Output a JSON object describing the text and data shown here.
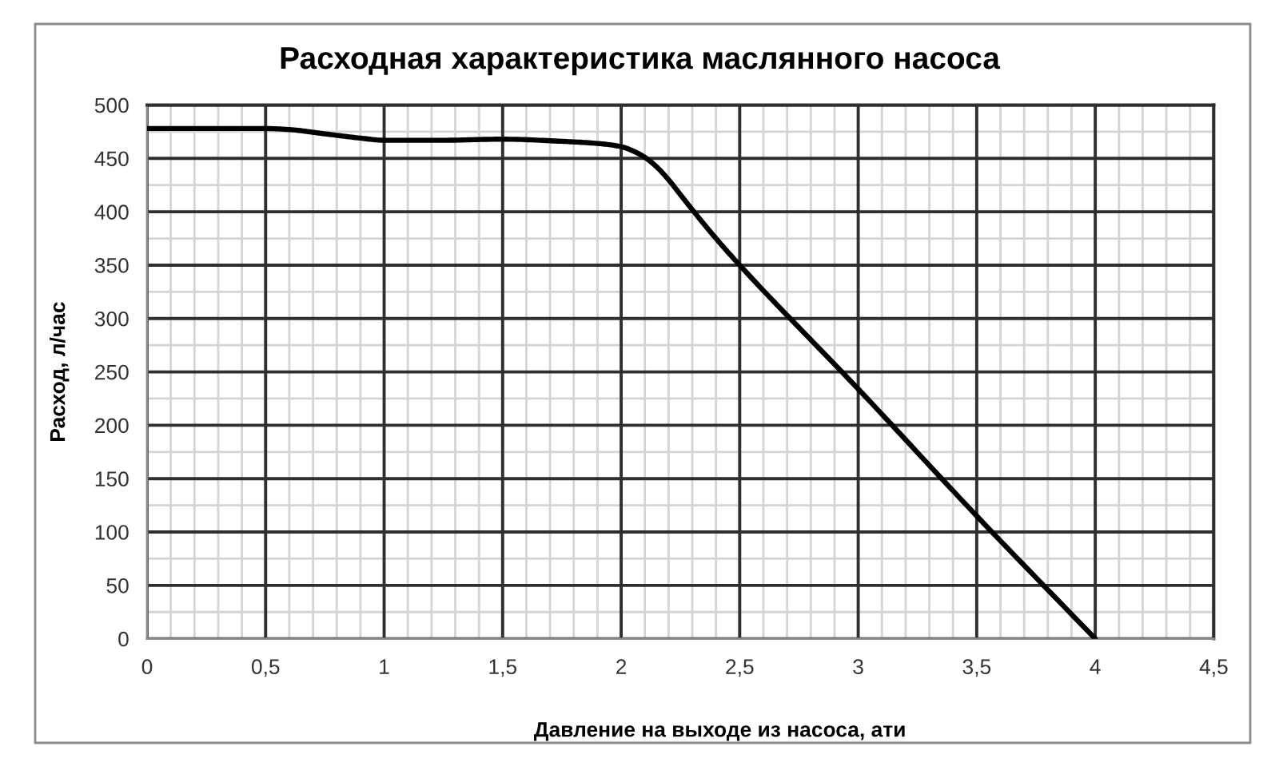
{
  "chart_data": {
    "type": "line",
    "title": "Расходная характеристика маслянного насоса",
    "xlabel": "Давление на выходе из насоса, ати",
    "ylabel": "Расход, л/час",
    "series": [
      {
        "color": "#000000",
        "x": [
          0,
          0.25,
          0.5,
          0.6,
          0.75,
          0.9,
          1.0,
          1.25,
          1.5,
          1.75,
          1.9,
          2.0,
          2.05,
          2.1,
          2.15,
          2.2,
          2.25,
          2.3,
          2.4,
          2.5,
          3.0,
          3.5,
          4.0
        ],
        "values": [
          478,
          478,
          478,
          477,
          473,
          469,
          467,
          467,
          468,
          466,
          464,
          461,
          457,
          451,
          442,
          430,
          416,
          402,
          375,
          350,
          234,
          115,
          0
        ]
      }
    ],
    "xlim": [
      0,
      4.5
    ],
    "ylim": [
      0,
      500
    ],
    "xticks": [
      0,
      {
        "value": 0.1,
        "label": null
      },
      {
        "value": 0.2,
        "label": null
      },
      {
        "value": 0.3,
        "label": null
      },
      {
        "value": 0.4,
        "label": null
      },
      {
        "value": 0.5,
        "label": "0,5"
      },
      {
        "value": 0.6,
        "label": null
      },
      {
        "value": 0.7,
        "label": null
      },
      {
        "value": 0.8,
        "label": null
      },
      {
        "value": 0.9,
        "label": null
      },
      1,
      {
        "value": 1.1,
        "label": null
      },
      {
        "value": 1.2,
        "label": null
      },
      {
        "value": 1.3,
        "label": null
      },
      {
        "value": 1.4,
        "label": null
      },
      {
        "value": 1.5,
        "label": "1,5"
      },
      {
        "value": 1.6,
        "label": null
      },
      {
        "value": 1.7,
        "label": null
      },
      {
        "value": 1.8,
        "label": null
      },
      {
        "value": 1.9,
        "label": null
      },
      2,
      {
        "value": 2.1,
        "label": null
      },
      {
        "value": 2.2,
        "label": null
      },
      {
        "value": 2.3,
        "label": null
      },
      {
        "value": 2.4,
        "label": null
      },
      {
        "value": 2.5,
        "label": "2,5"
      },
      {
        "value": 2.6,
        "label": null
      },
      {
        "value": 2.7,
        "label": null
      },
      {
        "value": 2.8,
        "label": null
      },
      {
        "value": 2.9,
        "label": null
      },
      3,
      {
        "value": 3.1,
        "label": null
      },
      {
        "value": 3.2,
        "label": null
      },
      {
        "value": 3.3,
        "label": null
      },
      {
        "value": 3.4,
        "label": null
      },
      {
        "value": 3.5,
        "label": "3,5"
      },
      {
        "value": 3.6,
        "label": null
      },
      {
        "value": 3.7,
        "label": null
      },
      {
        "value": 3.8,
        "label": null
      },
      {
        "value": 3.9,
        "label": null
      },
      4,
      {
        "value": 4.1,
        "label": null
      },
      {
        "value": 4.2,
        "label": null
      },
      {
        "value": 4.3,
        "label": null
      },
      {
        "value": 4.4,
        "label": null
      },
      {
        "value": 4.5,
        "label": "4,5"
      }
    ],
    "yticks": [
      0,
      {
        "value": 25,
        "label": null
      },
      50,
      {
        "value": 75,
        "label": null
      },
      100,
      {
        "value": 125,
        "label": null
      },
      150,
      {
        "value": 175,
        "label": null
      },
      200,
      {
        "value": 225,
        "label": null
      },
      250,
      {
        "value": 275,
        "label": null
      },
      300,
      {
        "value": 325,
        "label": null
      },
      350,
      {
        "value": 375,
        "label": null
      },
      400,
      {
        "value": 425,
        "label": null
      },
      450,
      {
        "value": 475,
        "label": null
      },
      500
    ],
    "grid": true
  }
}
